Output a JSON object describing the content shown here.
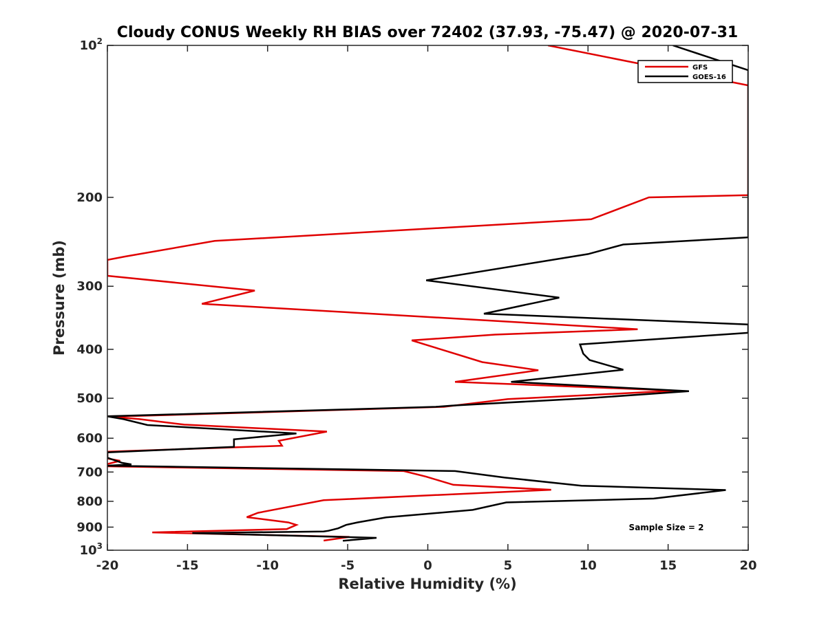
{
  "chart_data": {
    "type": "line",
    "title": "Cloudy CONUS Weekly RH BIAS over 72402 (37.93, -75.47) @ 2020-07-31",
    "xlabel": "Relative Humidity (%)",
    "ylabel": "Pressure (mb)",
    "xlim": [
      -20,
      20
    ],
    "ylim": [
      100,
      1000
    ],
    "y_scale": "log",
    "y_reversed": true,
    "x_ticks": [
      {
        "value": -20,
        "label": "-20"
      },
      {
        "value": -15,
        "label": "-15"
      },
      {
        "value": -10,
        "label": "-10"
      },
      {
        "value": -5,
        "label": "-5"
      },
      {
        "value": 0,
        "label": "0"
      },
      {
        "value": 5,
        "label": "5"
      },
      {
        "value": 10,
        "label": "10"
      },
      {
        "value": 15,
        "label": "15"
      },
      {
        "value": 20,
        "label": "20"
      }
    ],
    "y_ticks": [
      {
        "value": 100,
        "base": "10",
        "exp": "2"
      },
      {
        "value": 200,
        "base": "200",
        "exp": ""
      },
      {
        "value": 300,
        "base": "300",
        "exp": ""
      },
      {
        "value": 400,
        "base": "400",
        "exp": ""
      },
      {
        "value": 500,
        "base": "500",
        "exp": ""
      },
      {
        "value": 600,
        "base": "600",
        "exp": ""
      },
      {
        "value": 700,
        "base": "700",
        "exp": ""
      },
      {
        "value": 800,
        "base": "800",
        "exp": ""
      },
      {
        "value": 900,
        "base": "900",
        "exp": ""
      },
      {
        "value": 1000,
        "base": "10",
        "exp": "3"
      }
    ],
    "grid": false,
    "legend_position": "top-right",
    "annotation": "Sample Size = 2",
    "series": [
      {
        "name": "GFS",
        "color": "#e00000",
        "points": [
          [
            7.5,
            100
          ],
          [
            20,
            120
          ],
          [
            20,
            198
          ],
          [
            13.8,
            200
          ],
          [
            10.2,
            221
          ],
          [
            -13.3,
            244
          ],
          [
            -18.9,
            262
          ],
          [
            -20,
            266
          ],
          [
            -20,
            286
          ],
          [
            -10.8,
            306
          ],
          [
            -14.1,
            325
          ],
          [
            13.1,
            365
          ],
          [
            4.2,
            374
          ],
          [
            -1,
            384
          ],
          [
            3.4,
            424
          ],
          [
            6.9,
            440
          ],
          [
            1.7,
            464
          ],
          [
            15.5,
            483
          ],
          [
            5,
            502
          ],
          [
            1,
            520
          ],
          [
            -18.2,
            542
          ],
          [
            -20,
            543
          ],
          [
            -18,
            550
          ],
          [
            -15.2,
            564
          ],
          [
            -6.3,
            582
          ],
          [
            -9.3,
            607
          ],
          [
            -9.1,
            621
          ],
          [
            -20,
            638
          ],
          [
            -20,
            658
          ],
          [
            -19.2,
            665
          ],
          [
            -20,
            675
          ],
          [
            -20,
            682
          ],
          [
            -1.5,
            697
          ],
          [
            -0.1,
            715
          ],
          [
            1.6,
            742
          ],
          [
            7.7,
            759
          ],
          [
            -6.5,
            796
          ],
          [
            -10.6,
            843
          ],
          [
            -11.3,
            860
          ],
          [
            -8.7,
            881
          ],
          [
            -8.2,
            891
          ],
          [
            -8.8,
            908
          ],
          [
            -17.2,
            922
          ],
          [
            -4.9,
            941
          ],
          [
            -6.5,
            957
          ]
        ]
      },
      {
        "name": "GOES-16",
        "color": "#000000",
        "points": [
          [
            15.3,
            100
          ],
          [
            20,
            112
          ],
          [
            20,
            240
          ],
          [
            12.2,
            248
          ],
          [
            10,
            259
          ],
          [
            -0.1,
            292
          ],
          [
            8.2,
            316
          ],
          [
            3.5,
            340
          ],
          [
            20,
            357
          ],
          [
            20,
            371
          ],
          [
            9.5,
            391
          ],
          [
            9.7,
            408
          ],
          [
            10.1,
            420
          ],
          [
            12.2,
            439
          ],
          [
            5.2,
            464
          ],
          [
            16.3,
            484
          ],
          [
            10,
            500
          ],
          [
            1.5,
            517
          ],
          [
            0.5,
            520
          ],
          [
            -20,
            543
          ],
          [
            -19,
            550
          ],
          [
            -17.5,
            565
          ],
          [
            -8.2,
            587
          ],
          [
            -12.1,
            603
          ],
          [
            -12.1,
            624
          ],
          [
            -20,
            640
          ],
          [
            -20,
            656
          ],
          [
            -19.1,
            671
          ],
          [
            -18.5,
            676
          ],
          [
            -20,
            680
          ],
          [
            1.7,
            697
          ],
          [
            4.8,
            718
          ],
          [
            9.6,
            745
          ],
          [
            18.6,
            760
          ],
          [
            14.1,
            790
          ],
          [
            4.9,
            804
          ],
          [
            2.8,
            832
          ],
          [
            -2.6,
            861
          ],
          [
            -4.4,
            881
          ],
          [
            -5.1,
            891
          ],
          [
            -5.6,
            905
          ],
          [
            -6.2,
            915
          ],
          [
            -6.5,
            918
          ],
          [
            -14.7,
            925
          ],
          [
            -3.2,
            945
          ],
          [
            -5.3,
            958
          ]
        ]
      }
    ]
  }
}
